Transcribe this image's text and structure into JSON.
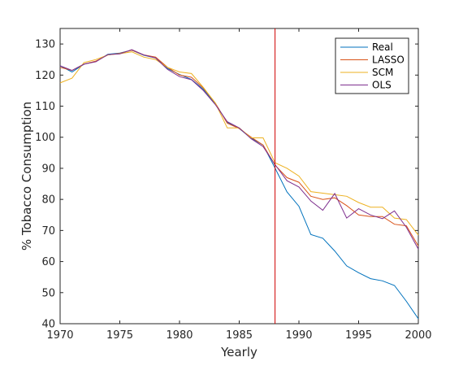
{
  "chart_data": {
    "type": "line",
    "title": "",
    "xlabel": "Yearly",
    "ylabel": "% Tobacco Consumption",
    "xlim": [
      1970,
      2000
    ],
    "ylim": [
      40,
      135
    ],
    "xticks": [
      1970,
      1975,
      1980,
      1985,
      1990,
      1995,
      2000
    ],
    "yticks": [
      40,
      50,
      60,
      70,
      80,
      90,
      100,
      110,
      120,
      130
    ],
    "grid": false,
    "legend_position": "top-right",
    "vertical_line": {
      "x": 1988,
      "color": "#d00000"
    },
    "x": [
      1970,
      1971,
      1972,
      1973,
      1974,
      1975,
      1976,
      1977,
      1978,
      1979,
      1980,
      1981,
      1982,
      1983,
      1984,
      1985,
      1986,
      1987,
      1988,
      1989,
      1990,
      1991,
      1992,
      1993,
      1994,
      1995,
      1996,
      1997,
      1998,
      1999,
      2000
    ],
    "series": [
      {
        "name": "Real",
        "color": "#0072bd",
        "values": [
          123.0,
          121.0,
          123.5,
          124.4,
          126.7,
          127.1,
          128.0,
          126.4,
          125.5,
          122.1,
          120.2,
          118.6,
          115.4,
          110.8,
          104.8,
          102.8,
          99.7,
          97.5,
          90.1,
          82.4,
          77.8,
          68.7,
          67.5,
          63.4,
          58.6,
          56.4,
          54.5,
          53.8,
          52.3,
          47.2,
          41.6
        ]
      },
      {
        "name": "LASSO",
        "color": "#d95319",
        "values": [
          122.5,
          121.5,
          123.5,
          124.5,
          126.5,
          127.0,
          128.0,
          126.5,
          125.8,
          122.5,
          120.0,
          119.3,
          115.8,
          111.0,
          104.5,
          102.8,
          100.0,
          97.5,
          91.0,
          87.0,
          85.5,
          81.0,
          80.0,
          80.5,
          78.0,
          75.0,
          74.5,
          74.5,
          72.0,
          71.5,
          65.0
        ]
      },
      {
        "name": "SCM",
        "color": "#edb120",
        "values": [
          117.5,
          119.0,
          124.0,
          125.0,
          126.5,
          126.9,
          127.5,
          125.8,
          125.0,
          122.5,
          121.0,
          120.5,
          116.0,
          111.0,
          103.0,
          103.0,
          99.8,
          99.8,
          91.8,
          90.0,
          87.5,
          82.5,
          82.0,
          81.5,
          81.0,
          79.0,
          77.5,
          77.5,
          74.0,
          73.5,
          68.5
        ]
      },
      {
        "name": "OLS",
        "color": "#7e2f8e",
        "values": [
          123.0,
          121.5,
          123.5,
          124.3,
          126.6,
          126.8,
          128.2,
          126.5,
          125.5,
          121.8,
          119.5,
          118.5,
          115.0,
          110.5,
          105.0,
          103.0,
          99.5,
          97.0,
          91.2,
          86.0,
          84.0,
          79.5,
          76.5,
          81.9,
          74.0,
          77.0,
          75.0,
          73.8,
          76.3,
          71.0,
          64.0
        ]
      }
    ]
  }
}
